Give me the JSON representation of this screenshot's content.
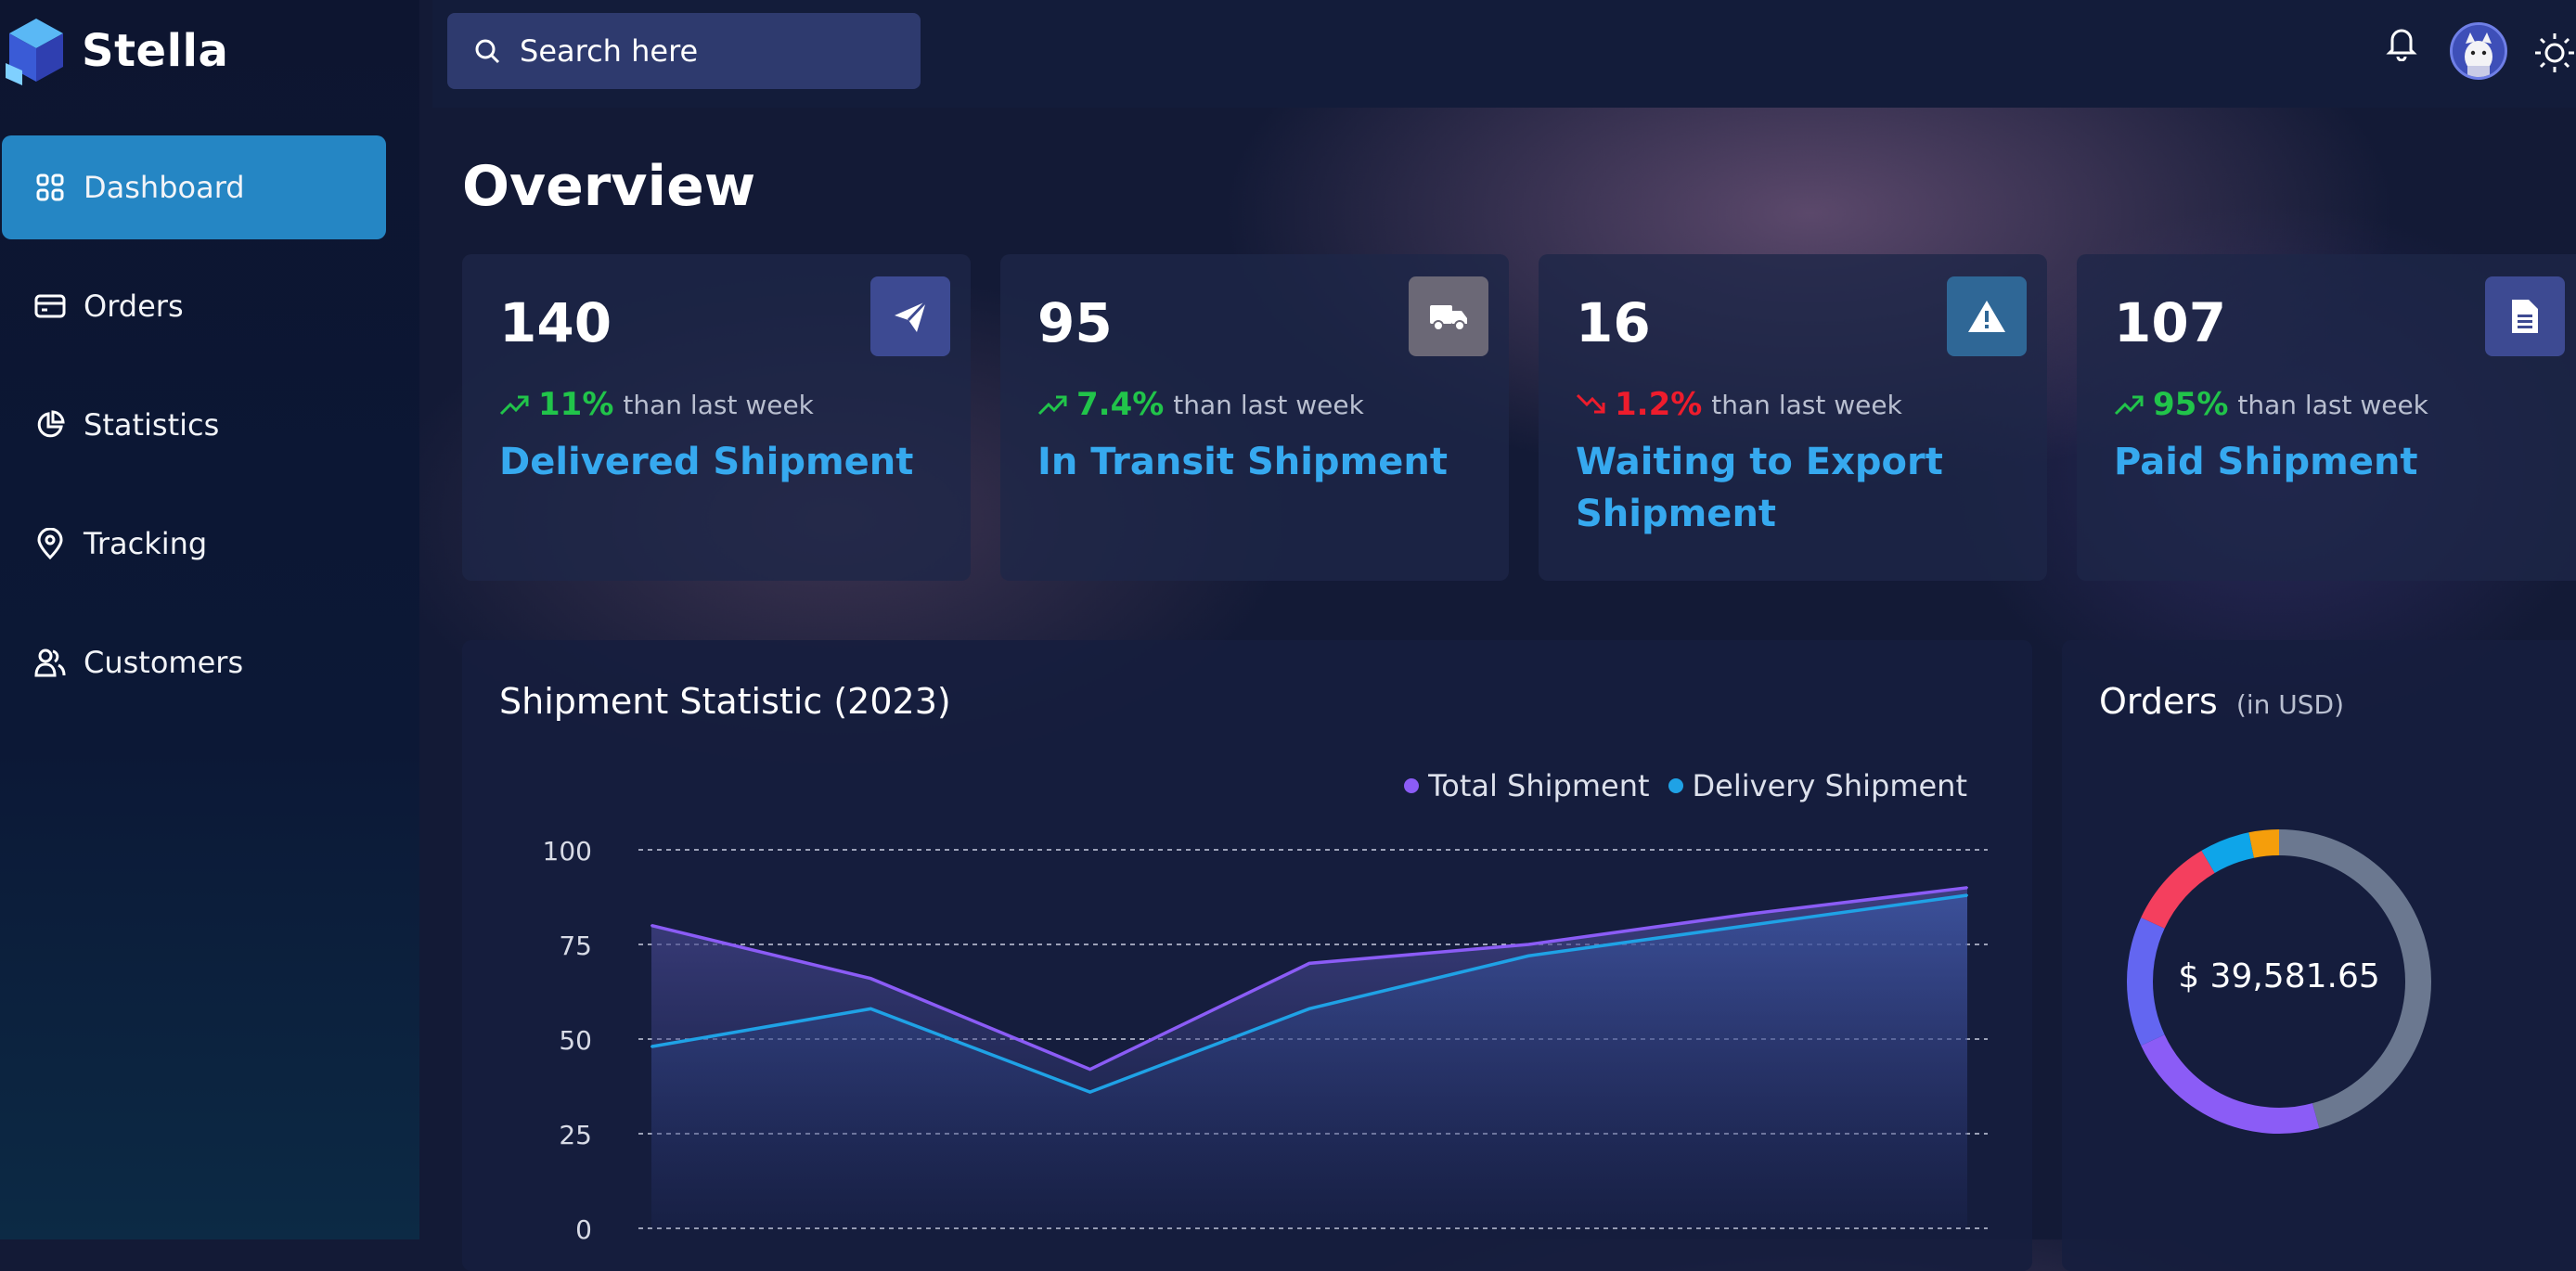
{
  "app": {
    "name": "Stella"
  },
  "sidebar": {
    "items": [
      {
        "label": "Dashboard",
        "icon": "grid-icon",
        "active": true
      },
      {
        "label": "Orders",
        "icon": "card-icon",
        "active": false
      },
      {
        "label": "Statistics",
        "icon": "pie-icon",
        "active": false
      },
      {
        "label": "Tracking",
        "icon": "location-pin-icon",
        "active": false
      },
      {
        "label": "Customers",
        "icon": "users-icon",
        "active": false
      }
    ]
  },
  "header": {
    "search_placeholder": "Search here",
    "icons": [
      "bell-icon",
      "avatar",
      "sun-icon"
    ]
  },
  "overview": {
    "title": "Overview",
    "cards": [
      {
        "value": "140",
        "trend": "up",
        "pct": "11%",
        "suffix": "than last week",
        "label": "Delivered Shipment",
        "icon": "send-icon",
        "icon_bg": "#3d4a92"
      },
      {
        "value": "95",
        "trend": "up",
        "pct": "7.4%",
        "suffix": "than last week",
        "label": "In Transit Shipment",
        "icon": "truck-icon",
        "icon_bg": "#6b6876"
      },
      {
        "value": "16",
        "trend": "down",
        "pct": "1.2%",
        "suffix": "than last week",
        "label": "Waiting to Export Shipment",
        "icon": "warning-icon",
        "icon_bg": "#2f6796"
      },
      {
        "value": "107",
        "trend": "up",
        "pct": "95%",
        "suffix": "than last week",
        "label": "Paid Shipment",
        "icon": "document-icon",
        "icon_bg": "#3d4a92"
      }
    ]
  },
  "colors": {
    "up": "#21c44a",
    "down": "#ee1c2c",
    "accent": "#36a9ef",
    "total": "#8b5cf6",
    "delivery": "#1fa2e6"
  },
  "shipment_chart": {
    "title": "Shipment Statistic (2023)",
    "chart_data": {
      "type": "area",
      "ylim": [
        0,
        100
      ],
      "yticks": [
        "100",
        "75",
        "50",
        "25",
        "0"
      ],
      "grid": true,
      "legend": "top-right",
      "series": [
        {
          "name": "Total Shipment",
          "color": "#8b5cf6",
          "values": [
            80,
            66,
            42,
            70,
            75,
            83,
            90
          ]
        },
        {
          "name": "Delivery Shipment",
          "color": "#1fa2e6",
          "values": [
            48,
            58,
            36,
            58,
            72,
            80,
            88
          ]
        }
      ]
    }
  },
  "orders_panel": {
    "title": "Orders",
    "subtitle": "(in USD)",
    "total": "$ 39,581.65",
    "chart_data": {
      "type": "pie",
      "values": [
        43,
        21,
        13,
        9,
        5,
        3
      ],
      "colors": [
        "#6b7890",
        "#8b5cf6",
        "#6366f1",
        "#f43f5e",
        "#0ea5e9",
        "#f59e0b"
      ]
    }
  }
}
